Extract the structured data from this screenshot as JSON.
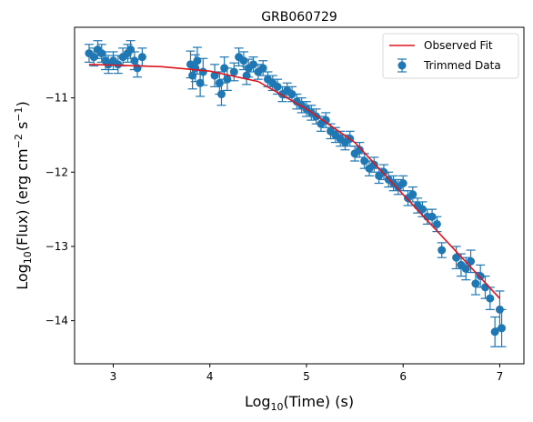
{
  "chart_data": {
    "type": "scatter",
    "title": "GRB060729",
    "xlabel": {
      "base": "Log",
      "sub": "10",
      "rest": "(Time) (s)"
    },
    "ylabel": {
      "base": "Log",
      "sub": "10",
      "rest": "(Flux) (erg cm",
      "sup1": "−2",
      "mid": " s",
      "sup2": "−1",
      "end": ")"
    },
    "xlim": [
      2.6,
      7.25
    ],
    "ylim": [
      -14.58,
      -10.05
    ],
    "xticks": [
      3,
      4,
      5,
      6,
      7
    ],
    "yticks": [
      -11,
      -12,
      -13,
      -14
    ],
    "xtick_labels": [
      "3",
      "4",
      "5",
      "6",
      "7"
    ],
    "ytick_labels": [
      "−11",
      "−12",
      "−13",
      "−14"
    ],
    "legend": {
      "position": "upper right",
      "entries": [
        {
          "name": "Observed Fit",
          "kind": "line"
        },
        {
          "name": "Trimmed Data",
          "kind": "errorbar"
        }
      ]
    },
    "colors": {
      "data": "#1f77b4",
      "fit": "#e0141e"
    },
    "series": [
      {
        "name": "Observed Fit",
        "kind": "line",
        "x": [
          2.75,
          3.5,
          4.0,
          4.5,
          5.0,
          5.5,
          6.0,
          6.5,
          7.0
        ],
        "y": [
          -10.55,
          -10.58,
          -10.64,
          -10.78,
          -11.15,
          -11.6,
          -12.3,
          -13.0,
          -13.7
        ]
      },
      {
        "name": "Trimmed Data",
        "kind": "errorbar",
        "x": [
          2.75,
          2.8,
          2.84,
          2.88,
          2.92,
          2.95,
          3.0,
          3.05,
          3.1,
          3.15,
          3.18,
          3.22,
          3.25,
          3.3,
          3.8,
          3.82,
          3.85,
          3.87,
          3.9,
          3.93,
          4.05,
          4.1,
          4.12,
          4.15,
          4.18,
          4.25,
          4.3,
          4.35,
          4.38,
          4.4,
          4.45,
          4.5,
          4.55,
          4.6,
          4.65,
          4.7,
          4.75,
          4.8,
          4.85,
          4.9,
          4.95,
          5.0,
          5.05,
          5.1,
          5.15,
          5.2,
          5.25,
          5.3,
          5.35,
          5.4,
          5.45,
          5.5,
          5.55,
          5.6,
          5.65,
          5.7,
          5.75,
          5.8,
          5.85,
          5.9,
          5.95,
          6.0,
          6.05,
          6.1,
          6.15,
          6.2,
          6.25,
          6.3,
          6.35,
          6.4,
          6.55,
          6.6,
          6.65,
          6.7,
          6.75,
          6.8,
          6.85,
          6.9,
          6.95,
          7.0,
          7.02
        ],
        "y": [
          -10.4,
          -10.45,
          -10.35,
          -10.4,
          -10.5,
          -10.55,
          -10.5,
          -10.55,
          -10.45,
          -10.4,
          -10.35,
          -10.5,
          -10.6,
          -10.45,
          -10.55,
          -10.7,
          -10.6,
          -10.5,
          -10.8,
          -10.65,
          -10.7,
          -10.8,
          -10.95,
          -10.6,
          -10.75,
          -10.65,
          -10.45,
          -10.5,
          -10.7,
          -10.6,
          -10.55,
          -10.65,
          -10.6,
          -10.75,
          -10.8,
          -10.85,
          -10.95,
          -10.9,
          -10.95,
          -11.05,
          -11.1,
          -11.15,
          -11.2,
          -11.25,
          -11.35,
          -11.3,
          -11.45,
          -11.5,
          -11.55,
          -11.6,
          -11.55,
          -11.75,
          -11.7,
          -11.85,
          -11.95,
          -11.9,
          -12.05,
          -12.0,
          -12.1,
          -12.15,
          -12.2,
          -12.15,
          -12.35,
          -12.3,
          -12.45,
          -12.5,
          -12.6,
          -12.6,
          -12.7,
          -13.05,
          -13.15,
          -13.25,
          -13.3,
          -13.2,
          -13.5,
          -13.4,
          -13.55,
          -13.7,
          -14.15,
          -13.85,
          -14.1
        ],
        "yerr": [
          0.12,
          0.12,
          0.12,
          0.12,
          0.12,
          0.12,
          0.12,
          0.12,
          0.12,
          0.12,
          0.12,
          0.12,
          0.12,
          0.12,
          0.18,
          0.18,
          0.18,
          0.18,
          0.18,
          0.18,
          0.15,
          0.15,
          0.15,
          0.15,
          0.15,
          0.12,
          0.12,
          0.12,
          0.12,
          0.12,
          0.1,
          0.1,
          0.1,
          0.1,
          0.1,
          0.1,
          0.1,
          0.1,
          0.1,
          0.1,
          0.1,
          0.1,
          0.1,
          0.1,
          0.1,
          0.1,
          0.1,
          0.1,
          0.1,
          0.1,
          0.1,
          0.1,
          0.1,
          0.1,
          0.1,
          0.1,
          0.1,
          0.1,
          0.1,
          0.1,
          0.1,
          0.1,
          0.1,
          0.1,
          0.1,
          0.1,
          0.1,
          0.1,
          0.1,
          0.1,
          0.15,
          0.15,
          0.15,
          0.15,
          0.15,
          0.15,
          0.15,
          0.15,
          0.2,
          0.25,
          0.25
        ]
      }
    ]
  }
}
